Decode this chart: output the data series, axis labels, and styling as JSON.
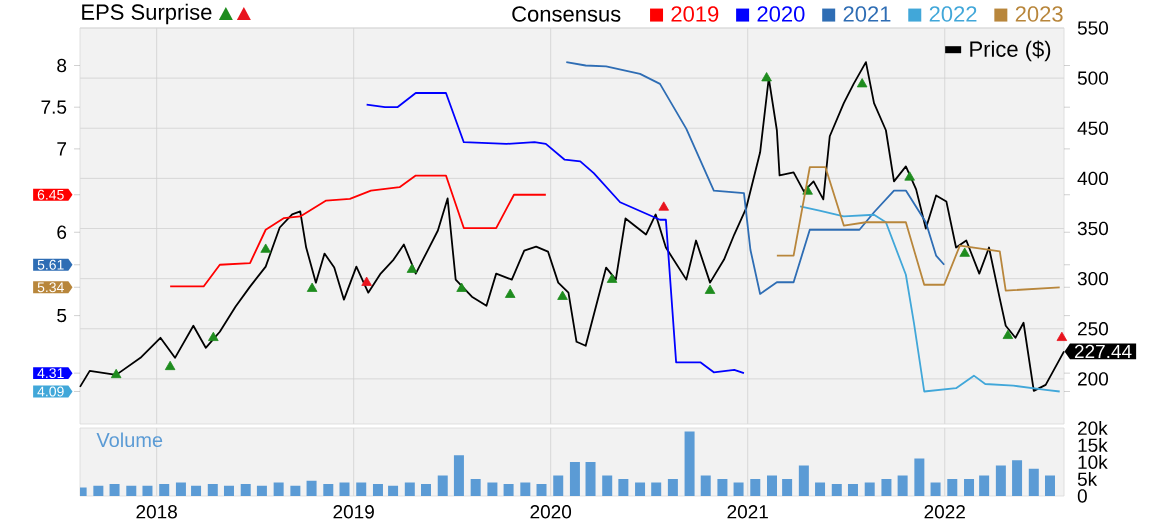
{
  "chart_data": [
    {
      "type": "line",
      "ylabel": "EPS Surprise",
      "legend_title": "Consensus",
      "legend": "top right",
      "grid": true,
      "tick_labels": "y",
      "xlim": [
        "2017-08-12",
        "2022-08-10"
      ],
      "xticks": [
        "2018",
        "2019",
        "2020",
        "2021",
        "2022"
      ],
      "ylim": [
        3.7,
        8.45
      ],
      "yticks": [
        {
          "value": 4.09,
          "label": "4.09"
        },
        {
          "value": 4.31,
          "label": "4.31"
        },
        5,
        {
          "value": 5.34,
          "label": "5.34"
        },
        {
          "value": 5.61,
          "label": "5.61"
        },
        6,
        {
          "value": 6.45,
          "label": "6.45"
        },
        7,
        7.5,
        8
      ],
      "y2lim": [
        155,
        550
      ],
      "y2ticks": [
        200,
        250,
        300,
        350,
        400,
        450,
        500,
        550
      ],
      "series": [
        {
          "name": "2019",
          "color": "#ff0000",
          "x": [
            "2018-01-26",
            "2018-03-29",
            "2018-04-28",
            "2018-06-23",
            "2018-07-22",
            "2018-08-25",
            "2018-09-24",
            "2018-11-11",
            "2018-12-25",
            "2019-02-02",
            "2019-03-27",
            "2019-04-26",
            "2019-06-21",
            "2019-07-24",
            "2019-09-22",
            "2019-10-25",
            "2019-12-23"
          ],
          "values": [
            5.35,
            5.35,
            5.61,
            5.63,
            6.03,
            6.17,
            6.19,
            6.38,
            6.4,
            6.5,
            6.54,
            6.68,
            6.68,
            6.05,
            6.05,
            6.45,
            6.45
          ]
        },
        {
          "name": "2020",
          "color": "#0000ff",
          "x": [
            "2019-01-25",
            "2019-02-28",
            "2019-03-23",
            "2019-04-26",
            "2019-06-21",
            "2019-07-24",
            "2019-10-11",
            "2019-12-02",
            "2019-12-23",
            "2020-01-27",
            "2020-02-25",
            "2020-03-21",
            "2020-05-09",
            "2020-07-22",
            "2020-08-02",
            "2020-08-21",
            "2020-10-05",
            "2020-10-30",
            "2020-12-07",
            "2020-12-25"
          ],
          "values": [
            7.53,
            7.5,
            7.5,
            7.67,
            7.67,
            7.08,
            7.06,
            7.08,
            7.06,
            6.87,
            6.85,
            6.71,
            6.36,
            6.15,
            6.15,
            4.44,
            4.44,
            4.32,
            4.35,
            4.31
          ]
        },
        {
          "name": "2021",
          "color": "#2e6db4",
          "x": [
            "2020-01-30",
            "2020-03-06",
            "2020-04-13",
            "2020-06-15",
            "2020-07-22",
            "2020-09-09",
            "2020-10-30",
            "2020-12-25",
            "2021-01-06",
            "2021-01-24",
            "2021-02-24",
            "2021-03-27",
            "2021-04-26",
            "2021-07-27",
            "2021-08-23",
            "2021-09-29",
            "2021-10-21",
            "2021-11-27",
            "2021-12-16",
            "2021-12-31"
          ],
          "values": [
            8.04,
            8.0,
            7.99,
            7.9,
            7.78,
            7.24,
            6.5,
            6.47,
            5.79,
            5.26,
            5.4,
            5.4,
            6.03,
            6.03,
            6.24,
            6.5,
            6.5,
            6.12,
            5.72,
            5.61
          ]
        },
        {
          "name": "2022",
          "color": "#41a7d9",
          "x": [
            "2021-04-08",
            "2021-05-14",
            "2021-06-28",
            "2021-08-23",
            "2021-09-14",
            "2021-10-21",
            "2021-11-05",
            "2021-11-24",
            "2022-01-22",
            "2022-02-24",
            "2022-03-17",
            "2022-05-08",
            "2022-07-07",
            "2022-08-02"
          ],
          "values": [
            6.31,
            6.26,
            6.19,
            6.21,
            6.12,
            5.49,
            4.91,
            4.09,
            4.13,
            4.28,
            4.18,
            4.16,
            4.11,
            4.09
          ]
        },
        {
          "name": "2023",
          "color": "#b8863b",
          "x": [
            "2021-02-24",
            "2021-03-27",
            "2021-04-26",
            "2021-05-25",
            "2021-06-28",
            "2021-08-08",
            "2021-10-21",
            "2021-11-24",
            "2021-12-31",
            "2022-01-29",
            "2022-04-13",
            "2022-04-24",
            "2022-08-02"
          ],
          "values": [
            5.72,
            5.72,
            6.78,
            6.78,
            6.08,
            6.12,
            6.12,
            5.37,
            5.37,
            5.84,
            5.77,
            5.3,
            5.34
          ]
        },
        {
          "name": "Price ($)",
          "color": "#000000",
          "axis": "y2",
          "x": [
            "2017-08-12",
            "2017-08-30",
            "2017-10-18",
            "2017-12-02",
            "2018-01-08",
            "2018-02-04",
            "2018-03-10",
            "2018-04-02",
            "2018-04-28",
            "2018-05-27",
            "2018-06-23",
            "2018-07-22",
            "2018-08-17",
            "2018-09-09",
            "2018-09-24",
            "2018-10-05",
            "2018-10-23",
            "2018-11-08",
            "2018-11-26",
            "2018-12-14",
            "2019-01-06",
            "2019-01-28",
            "2019-02-20",
            "2019-03-16",
            "2019-04-04",
            "2019-04-26",
            "2019-05-18",
            "2019-06-06",
            "2019-06-24",
            "2019-07-09",
            "2019-08-08",
            "2019-09-04",
            "2019-09-22",
            "2019-10-21",
            "2019-11-13",
            "2019-12-05",
            "2019-12-27",
            "2020-01-15",
            "2020-02-03",
            "2020-02-18",
            "2020-03-06",
            "2020-04-13",
            "2020-05-01",
            "2020-05-19",
            "2020-06-26",
            "2020-07-14",
            "2020-08-02",
            "2020-09-09",
            "2020-09-27",
            "2020-10-23",
            "2020-11-18",
            "2020-12-07",
            "2020-12-29",
            "2021-01-24",
            "2021-02-09",
            "2021-02-24",
            "2021-03-01",
            "2021-03-27",
            "2021-04-15",
            "2021-05-03",
            "2021-05-21",
            "2021-06-02",
            "2021-06-28",
            "2021-07-16",
            "2021-08-08",
            "2021-08-23",
            "2021-09-14",
            "2021-09-29",
            "2021-10-21",
            "2021-11-09",
            "2021-11-27",
            "2021-12-16",
            "2022-01-04",
            "2022-01-22",
            "2022-02-10",
            "2022-03-06",
            "2022-03-24",
            "2022-04-13",
            "2022-04-24",
            "2022-05-12",
            "2022-05-27",
            "2022-06-15",
            "2022-07-07",
            "2022-08-10"
          ],
          "values": [
            192,
            208,
            204,
            221,
            241,
            221,
            253,
            231,
            247,
            272,
            292,
            312,
            351,
            364,
            367,
            331,
            296,
            325,
            311,
            279,
            312,
            286,
            305,
            319,
            334,
            305,
            328,
            348,
            380,
            299,
            282,
            273,
            305,
            299,
            328,
            332,
            327,
            296,
            286,
            237,
            233,
            311,
            299,
            360,
            344,
            364,
            331,
            299,
            338,
            296,
            319,
            344,
            370,
            426,
            500,
            448,
            403,
            406,
            387,
            397,
            379,
            442,
            475,
            494,
            516,
            475,
            448,
            397,
            412,
            389,
            350,
            383,
            377,
            331,
            338,
            305,
            331,
            280,
            253,
            241,
            256,
            188,
            194,
            227.44
          ],
          "value_labels": [
            null,
            null,
            null,
            null,
            null,
            null,
            null,
            null,
            null,
            null,
            null,
            null,
            null,
            null,
            null,
            null,
            null,
            null,
            null,
            null,
            null,
            null,
            null,
            null,
            null,
            null,
            null,
            null,
            null,
            null,
            null,
            null,
            null,
            null,
            null,
            null,
            null,
            null,
            null,
            null,
            null,
            null,
            null,
            null,
            null,
            null,
            null,
            null,
            null,
            null,
            null,
            null,
            null,
            null,
            null,
            null,
            null,
            null,
            null,
            null,
            null,
            null,
            null,
            null,
            null,
            null,
            null,
            null,
            null,
            null,
            null,
            null,
            null,
            null,
            null,
            null,
            null,
            null,
            null,
            null,
            null,
            null,
            null,
            "227.44"
          ]
        },
        {
          "type": "scatter",
          "color": "#1e8c1e",
          "axis": "y2",
          "marker": "triangle",
          "x": [
            "2017-10-18",
            "2018-01-26",
            "2018-04-16",
            "2018-07-22",
            "2018-10-16",
            "2019-04-19",
            "2019-07-20",
            "2019-10-18",
            "2020-01-23",
            "2020-04-24",
            "2020-10-23",
            "2021-02-05",
            "2021-04-22",
            "2021-08-01",
            "2021-10-28",
            "2022-02-07",
            "2022-04-28"
          ],
          "values": [
            204,
            212,
            241,
            329,
            290,
            309,
            290,
            284,
            282,
            299,
            288,
            500,
            387,
            494,
            401,
            325,
            243
          ]
        },
        {
          "type": "scatter",
          "color": "#e8141e",
          "axis": "y2",
          "marker": "triangle",
          "x": [
            "2019-01-25",
            "2020-07-29",
            "2022-08-06"
          ],
          "values": [
            296,
            371,
            241
          ]
        }
      ]
    },
    {
      "type": "bar",
      "y2label": "Volume",
      "xlim": [
        "2017-08-12",
        "2022-08-10"
      ],
      "xticks": [
        "2018",
        "2019",
        "2020",
        "2021",
        "2022"
      ],
      "grid": "x",
      "y2lim": [
        0,
        20000
      ],
      "y2ticks": [
        0,
        {
          "value": 5000,
          "label": "5k"
        },
        {
          "value": 10000,
          "label": "10k"
        },
        {
          "value": 15000,
          "label": "15k"
        },
        {
          "value": 20000,
          "label": "20k"
        }
      ],
      "series": [
        {
          "color": "#5b9bd5",
          "axis": "y2",
          "x": [
            "2017-08-15",
            "2017-09-15",
            "2017-10-15",
            "2017-11-15",
            "2017-12-15",
            "2018-01-15",
            "2018-02-15",
            "2018-03-15",
            "2018-04-15",
            "2018-05-15",
            "2018-06-15",
            "2018-07-15",
            "2018-08-15",
            "2018-09-15",
            "2018-10-15",
            "2018-11-15",
            "2018-12-15",
            "2019-01-15",
            "2019-02-15",
            "2019-03-15",
            "2019-04-15",
            "2019-05-15",
            "2019-06-15",
            "2019-07-15",
            "2019-08-15",
            "2019-09-15",
            "2019-10-15",
            "2019-11-15",
            "2019-12-15",
            "2020-01-15",
            "2020-02-15",
            "2020-03-15",
            "2020-04-15",
            "2020-05-15",
            "2020-06-15",
            "2020-07-15",
            "2020-08-15",
            "2020-09-15",
            "2020-10-15",
            "2020-11-15",
            "2020-12-15",
            "2021-01-15",
            "2021-02-15",
            "2021-03-15",
            "2021-04-15",
            "2021-05-15",
            "2021-06-15",
            "2021-07-15",
            "2021-08-15",
            "2021-09-15",
            "2021-10-15",
            "2021-11-15",
            "2021-12-15",
            "2022-01-15",
            "2022-02-15",
            "2022-03-15",
            "2022-04-15",
            "2022-05-15",
            "2022-06-15",
            "2022-07-15"
          ],
          "values": [
            2500,
            3000,
            3500,
            3000,
            3000,
            3500,
            4000,
            3000,
            3500,
            3000,
            3500,
            3000,
            4000,
            3000,
            4500,
            3500,
            4000,
            4000,
            3500,
            3000,
            4000,
            3500,
            6000,
            12000,
            5000,
            4000,
            3500,
            4000,
            3500,
            6000,
            10000,
            10000,
            6000,
            5000,
            4000,
            4000,
            5000,
            19000,
            6000,
            5000,
            4000,
            5000,
            6000,
            5000,
            9000,
            4000,
            3500,
            3500,
            4000,
            5000,
            6000,
            11000,
            4000,
            5000,
            5000,
            6000,
            9000,
            10500,
            8000,
            6000
          ]
        }
      ]
    }
  ]
}
